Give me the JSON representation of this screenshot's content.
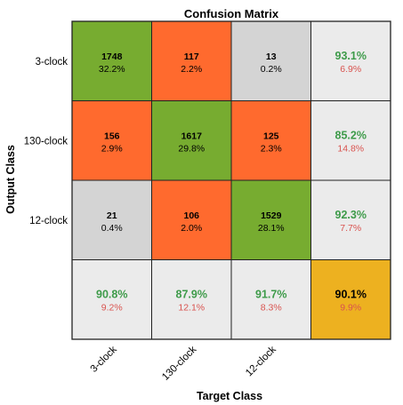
{
  "chart_data": {
    "type": "heatmap",
    "title": "Confusion Matrix",
    "xlabel": "Target Class",
    "ylabel": "Output Class",
    "x_categories": [
      "3-clock",
      "130-clock",
      "12-clock"
    ],
    "y_categories": [
      "3-clock",
      "130-clock",
      "12-clock"
    ],
    "counts": [
      [
        1748,
        117,
        13
      ],
      [
        156,
        1617,
        125
      ],
      [
        21,
        106,
        1529
      ]
    ],
    "percents": [
      [
        "32.2%",
        "2.2%",
        "0.2%"
      ],
      [
        "2.9%",
        "29.8%",
        "2.3%"
      ],
      [
        "0.4%",
        "2.0%",
        "28.1%"
      ]
    ],
    "row_summary": [
      {
        "correct": "93.1%",
        "error": "6.9%"
      },
      {
        "correct": "85.2%",
        "error": "14.8%"
      },
      {
        "correct": "92.3%",
        "error": "7.7%"
      }
    ],
    "col_summary": [
      {
        "correct": "90.8%",
        "error": "9.2%"
      },
      {
        "correct": "87.9%",
        "error": "12.1%"
      },
      {
        "correct": "91.7%",
        "error": "8.3%"
      }
    ],
    "overall": {
      "correct": "90.1%",
      "error": "9.9%"
    },
    "colors": {
      "correct_cell": "#77AC30",
      "error_cell": "#FF6A2E",
      "zero_error_cell": "#D4D4D4",
      "summary_cell": "#EBEBEB",
      "overall_cell": "#EDB120",
      "correct_text": "#3E9B4A",
      "error_text": "#D9534F",
      "grid_line": "#222222"
    }
  }
}
